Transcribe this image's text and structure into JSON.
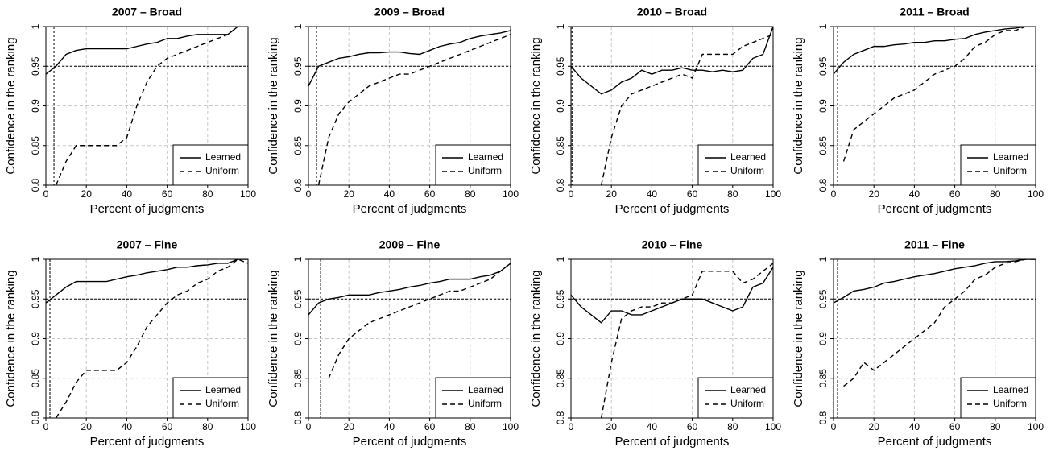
{
  "chart_data": [
    {
      "type": "line",
      "title": "2007 – Broad",
      "x_label": "Percent of judgments",
      "y_label": "Confidence in the ranking",
      "x": [
        0,
        5,
        10,
        15,
        20,
        25,
        30,
        35,
        40,
        45,
        50,
        55,
        60,
        65,
        70,
        75,
        80,
        85,
        90,
        95,
        100
      ],
      "series": [
        {
          "name": "Learned",
          "color": "#000000",
          "dash": "solid",
          "values": [
            0.94,
            0.95,
            0.965,
            0.97,
            0.972,
            0.972,
            0.972,
            0.972,
            0.972,
            0.975,
            0.978,
            0.98,
            0.985,
            0.985,
            0.988,
            0.99,
            0.99,
            0.99,
            0.99,
            1,
            1
          ]
        },
        {
          "name": "Uniform",
          "color": "#000000",
          "dash": "dashed",
          "values": [
            null,
            0.8,
            0.83,
            0.85,
            0.85,
            0.85,
            0.85,
            0.85,
            0.86,
            0.9,
            0.93,
            0.95,
            0.96,
            0.965,
            0.97,
            0.975,
            0.98,
            0.985,
            0.99,
            1,
            1
          ]
        }
      ],
      "xlim": [
        0,
        100
      ],
      "ylim": [
        0.8,
        1
      ],
      "xticks": [
        0,
        20,
        40,
        60,
        80,
        100
      ],
      "yticks": [
        0.8,
        0.85,
        0.9,
        0.95,
        1
      ],
      "grid": true,
      "legend": "bottom-right",
      "hline": 0.95,
      "vline": 4
    },
    {
      "type": "line",
      "title": "2009 – Broad",
      "x_label": "Percent of judgments",
      "y_label": "Confidence in the ranking",
      "x": [
        0,
        5,
        10,
        15,
        20,
        25,
        30,
        35,
        40,
        45,
        50,
        55,
        60,
        65,
        70,
        75,
        80,
        85,
        90,
        95,
        100
      ],
      "series": [
        {
          "name": "Learned",
          "color": "#000000",
          "dash": "solid",
          "values": [
            0.925,
            0.95,
            0.955,
            0.96,
            0.962,
            0.965,
            0.967,
            0.967,
            0.968,
            0.968,
            0.966,
            0.965,
            0.97,
            0.975,
            0.978,
            0.98,
            0.985,
            0.988,
            0.99,
            0.992,
            0.995
          ]
        },
        {
          "name": "Uniform",
          "color": "#000000",
          "dash": "dashed",
          "values": [
            null,
            0.8,
            0.86,
            0.89,
            0.905,
            0.915,
            0.925,
            0.93,
            0.935,
            0.94,
            0.94,
            0.945,
            0.95,
            0.955,
            0.96,
            0.965,
            0.97,
            0.975,
            0.98,
            0.985,
            0.99
          ]
        }
      ],
      "xlim": [
        0,
        100
      ],
      "ylim": [
        0.8,
        1
      ],
      "xticks": [
        0,
        20,
        40,
        60,
        80,
        100
      ],
      "yticks": [
        0.8,
        0.85,
        0.9,
        0.95,
        1
      ],
      "grid": true,
      "legend": "bottom-right",
      "hline": 0.95,
      "vline": 4
    },
    {
      "type": "line",
      "title": "2010 – Broad",
      "x_label": "Percent of judgments",
      "y_label": "Confidence in the ranking",
      "x": [
        0,
        5,
        10,
        15,
        20,
        25,
        30,
        35,
        40,
        45,
        50,
        55,
        60,
        65,
        70,
        75,
        80,
        85,
        90,
        95,
        100
      ],
      "series": [
        {
          "name": "Learned",
          "color": "#000000",
          "dash": "solid",
          "values": [
            0.95,
            0.935,
            0.925,
            0.915,
            0.92,
            0.93,
            0.935,
            0.945,
            0.94,
            0.945,
            0.945,
            0.948,
            0.945,
            0.945,
            0.943,
            0.945,
            0.943,
            0.945,
            0.96,
            0.965,
            1
          ]
        },
        {
          "name": "Uniform",
          "color": "#000000",
          "dash": "dashed",
          "values": [
            null,
            null,
            null,
            0.8,
            0.86,
            0.9,
            0.915,
            0.92,
            0.925,
            0.93,
            0.935,
            0.94,
            0.935,
            0.965,
            0.965,
            0.965,
            0.965,
            0.975,
            0.98,
            0.985,
            0.99
          ]
        }
      ],
      "xlim": [
        0,
        100
      ],
      "ylim": [
        0.8,
        1
      ],
      "xticks": [
        0,
        20,
        40,
        60,
        80,
        100
      ],
      "yticks": [
        0.8,
        0.85,
        0.9,
        0.95,
        1
      ],
      "grid": true,
      "legend": "bottom-right",
      "hline": 0.95,
      "vline": 0.5
    },
    {
      "type": "line",
      "title": "2011 – Broad",
      "x_label": "Percent of judgments",
      "y_label": "Confidence in the ranking",
      "x": [
        0,
        5,
        10,
        15,
        20,
        25,
        30,
        35,
        40,
        45,
        50,
        55,
        60,
        65,
        70,
        75,
        80,
        85,
        90,
        95,
        100
      ],
      "series": [
        {
          "name": "Learned",
          "color": "#000000",
          "dash": "solid",
          "values": [
            0.94,
            0.955,
            0.965,
            0.97,
            0.975,
            0.975,
            0.977,
            0.978,
            0.98,
            0.98,
            0.982,
            0.982,
            0.984,
            0.985,
            0.99,
            0.993,
            0.995,
            0.997,
            0.998,
            1,
            1
          ]
        },
        {
          "name": "Uniform",
          "color": "#000000",
          "dash": "dashed",
          "values": [
            null,
            0.83,
            0.87,
            0.88,
            0.89,
            0.9,
            0.91,
            0.915,
            0.92,
            0.93,
            0.94,
            0.945,
            0.95,
            0.96,
            0.975,
            0.98,
            0.99,
            0.995,
            0.995,
            1,
            1
          ]
        }
      ],
      "xlim": [
        0,
        100
      ],
      "ylim": [
        0.8,
        1
      ],
      "xticks": [
        0,
        20,
        40,
        60,
        80,
        100
      ],
      "yticks": [
        0.8,
        0.85,
        0.9,
        0.95,
        1
      ],
      "grid": true,
      "legend": "bottom-right",
      "hline": 0.95,
      "vline": 2
    },
    {
      "type": "line",
      "title": "2007 – Fine",
      "x_label": "Percent of judgments",
      "y_label": "Confidence in the ranking",
      "x": [
        0,
        5,
        10,
        15,
        20,
        25,
        30,
        35,
        40,
        45,
        50,
        55,
        60,
        65,
        70,
        75,
        80,
        85,
        90,
        95,
        100
      ],
      "series": [
        {
          "name": "Learned",
          "color": "#000000",
          "dash": "solid",
          "values": [
            0.945,
            0.955,
            0.965,
            0.972,
            0.972,
            0.972,
            0.972,
            0.975,
            0.978,
            0.98,
            0.983,
            0.985,
            0.987,
            0.99,
            0.99,
            0.992,
            0.993,
            0.995,
            0.995,
            1,
            1
          ]
        },
        {
          "name": "Uniform",
          "color": "#000000",
          "dash": "dashed",
          "values": [
            null,
            0.8,
            0.82,
            0.845,
            0.86,
            0.86,
            0.86,
            0.86,
            0.87,
            0.89,
            0.915,
            0.93,
            0.945,
            0.955,
            0.96,
            0.97,
            0.975,
            0.985,
            0.99,
            1,
            0.995
          ]
        }
      ],
      "xlim": [
        0,
        100
      ],
      "ylim": [
        0.8,
        1
      ],
      "xticks": [
        0,
        20,
        40,
        60,
        80,
        100
      ],
      "yticks": [
        0.8,
        0.85,
        0.9,
        0.95,
        1
      ],
      "grid": true,
      "legend": "bottom-right",
      "hline": 0.95,
      "vline": 2
    },
    {
      "type": "line",
      "title": "2009 – Fine",
      "x_label": "Percent of judgments",
      "y_label": "Confidence in the ranking",
      "x": [
        0,
        5,
        10,
        15,
        20,
        25,
        30,
        35,
        40,
        45,
        50,
        55,
        60,
        65,
        70,
        75,
        80,
        85,
        90,
        95,
        100
      ],
      "series": [
        {
          "name": "Learned",
          "color": "#000000",
          "dash": "solid",
          "values": [
            0.93,
            0.945,
            0.95,
            0.952,
            0.955,
            0.955,
            0.955,
            0.958,
            0.96,
            0.962,
            0.965,
            0.967,
            0.97,
            0.972,
            0.975,
            0.975,
            0.975,
            0.978,
            0.98,
            0.985,
            0.995
          ]
        },
        {
          "name": "Uniform",
          "color": "#000000",
          "dash": "dashed",
          "values": [
            null,
            null,
            0.85,
            0.88,
            0.9,
            0.91,
            0.92,
            0.925,
            0.93,
            0.935,
            0.94,
            0.945,
            0.95,
            0.955,
            0.96,
            0.96,
            0.965,
            0.97,
            0.975,
            0.985,
            0.995
          ]
        }
      ],
      "xlim": [
        0,
        100
      ],
      "ylim": [
        0.8,
        1
      ],
      "xticks": [
        0,
        20,
        40,
        60,
        80,
        100
      ],
      "yticks": [
        0.8,
        0.85,
        0.9,
        0.95,
        1
      ],
      "grid": true,
      "legend": "bottom-right",
      "hline": 0.95,
      "vline": 6
    },
    {
      "type": "line",
      "title": "2010 – Fine",
      "x_label": "Percent of judgments",
      "y_label": "Confidence in the ranking",
      "x": [
        0,
        5,
        10,
        15,
        20,
        25,
        30,
        35,
        40,
        45,
        50,
        55,
        60,
        65,
        70,
        75,
        80,
        85,
        90,
        95,
        100
      ],
      "series": [
        {
          "name": "Learned",
          "color": "#000000",
          "dash": "solid",
          "values": [
            0.955,
            0.94,
            0.93,
            0.92,
            0.935,
            0.935,
            0.93,
            0.93,
            0.935,
            0.94,
            0.945,
            0.95,
            0.95,
            0.95,
            0.945,
            0.94,
            0.935,
            0.94,
            0.965,
            0.97,
            0.99
          ]
        },
        {
          "name": "Uniform",
          "color": "#000000",
          "dash": "dashed",
          "values": [
            null,
            null,
            null,
            0.8,
            0.87,
            0.925,
            0.935,
            0.94,
            0.94,
            0.945,
            0.945,
            0.95,
            0.955,
            0.985,
            0.985,
            0.985,
            0.985,
            0.97,
            0.975,
            0.985,
            0.995
          ]
        }
      ],
      "xlim": [
        0,
        100
      ],
      "ylim": [
        0.8,
        1
      ],
      "xticks": [
        0,
        20,
        40,
        60,
        80,
        100
      ],
      "yticks": [
        0.8,
        0.85,
        0.9,
        0.95,
        1
      ],
      "grid": true,
      "legend": "bottom-right",
      "hline": 0.95,
      "vline": 0
    },
    {
      "type": "line",
      "title": "2011 – Fine",
      "x_label": "Percent of judgments",
      "y_label": "Confidence in the ranking",
      "x": [
        0,
        5,
        10,
        15,
        20,
        25,
        30,
        35,
        40,
        45,
        50,
        55,
        60,
        65,
        70,
        75,
        80,
        85,
        90,
        95,
        100
      ],
      "series": [
        {
          "name": "Learned",
          "color": "#000000",
          "dash": "solid",
          "values": [
            0.945,
            0.952,
            0.96,
            0.962,
            0.965,
            0.97,
            0.972,
            0.975,
            0.978,
            0.98,
            0.982,
            0.985,
            0.988,
            0.99,
            0.992,
            0.995,
            0.997,
            0.997,
            0.998,
            1,
            1
          ]
        },
        {
          "name": "Uniform",
          "color": "#000000",
          "dash": "dashed",
          "values": [
            null,
            0.84,
            0.85,
            0.87,
            0.86,
            0.87,
            0.88,
            0.89,
            0.9,
            0.91,
            0.92,
            0.94,
            0.95,
            0.96,
            0.975,
            0.98,
            0.99,
            0.995,
            0.997,
            1,
            1
          ]
        }
      ],
      "xlim": [
        0,
        100
      ],
      "ylim": [
        0.8,
        1
      ],
      "xticks": [
        0,
        20,
        40,
        60,
        80,
        100
      ],
      "yticks": [
        0.8,
        0.85,
        0.9,
        0.95,
        1
      ],
      "grid": true,
      "legend": "bottom-right",
      "hline": 0.95,
      "vline": 2
    }
  ]
}
